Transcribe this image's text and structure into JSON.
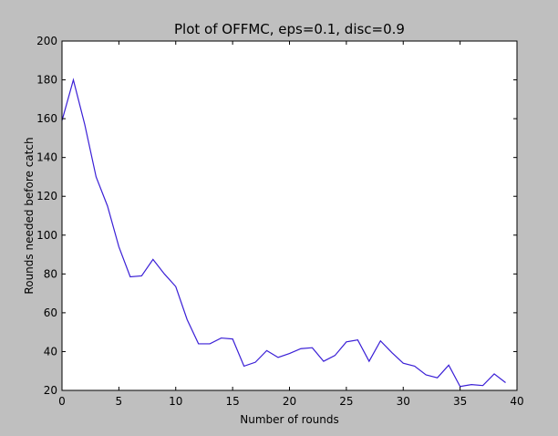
{
  "chart_data": {
    "type": "line",
    "title": "Plot of OFFMC, eps=0.1, disc=0.9",
    "xlabel": "Number of rounds",
    "ylabel": "Rounds needed before catch",
    "xlim": [
      0,
      40
    ],
    "ylim": [
      20,
      200
    ],
    "xticks": [
      0,
      5,
      10,
      15,
      20,
      25,
      30,
      35,
      40
    ],
    "yticks": [
      20,
      40,
      60,
      80,
      100,
      120,
      140,
      160,
      180,
      200
    ],
    "grid": false,
    "series": [
      {
        "x": [
          0,
          1,
          2,
          3,
          4,
          5,
          6,
          7,
          8,
          9,
          10,
          11,
          12,
          13,
          14,
          15,
          16,
          17,
          18,
          19,
          20,
          21,
          22,
          23,
          24,
          25,
          26,
          27,
          28,
          29,
          30,
          31,
          32,
          33,
          34,
          35,
          36,
          37,
          38,
          39
        ],
        "values": [
          159,
          180,
          157,
          130,
          115,
          94,
          78.5,
          79,
          87.5,
          80,
          73.5,
          56.5,
          44,
          44,
          47,
          46.5,
          32.5,
          34.5,
          40.5,
          37,
          39,
          41.5,
          42,
          35,
          38,
          45,
          46,
          35,
          45.5,
          39.5,
          34,
          32.5,
          28,
          26.5,
          33,
          22,
          23,
          22.5,
          28.5,
          24
        ]
      }
    ],
    "colors": {
      "figure_background": "#bfbfbf",
      "plot_background": "#ffffff",
      "line": "#3a1fd6"
    }
  }
}
